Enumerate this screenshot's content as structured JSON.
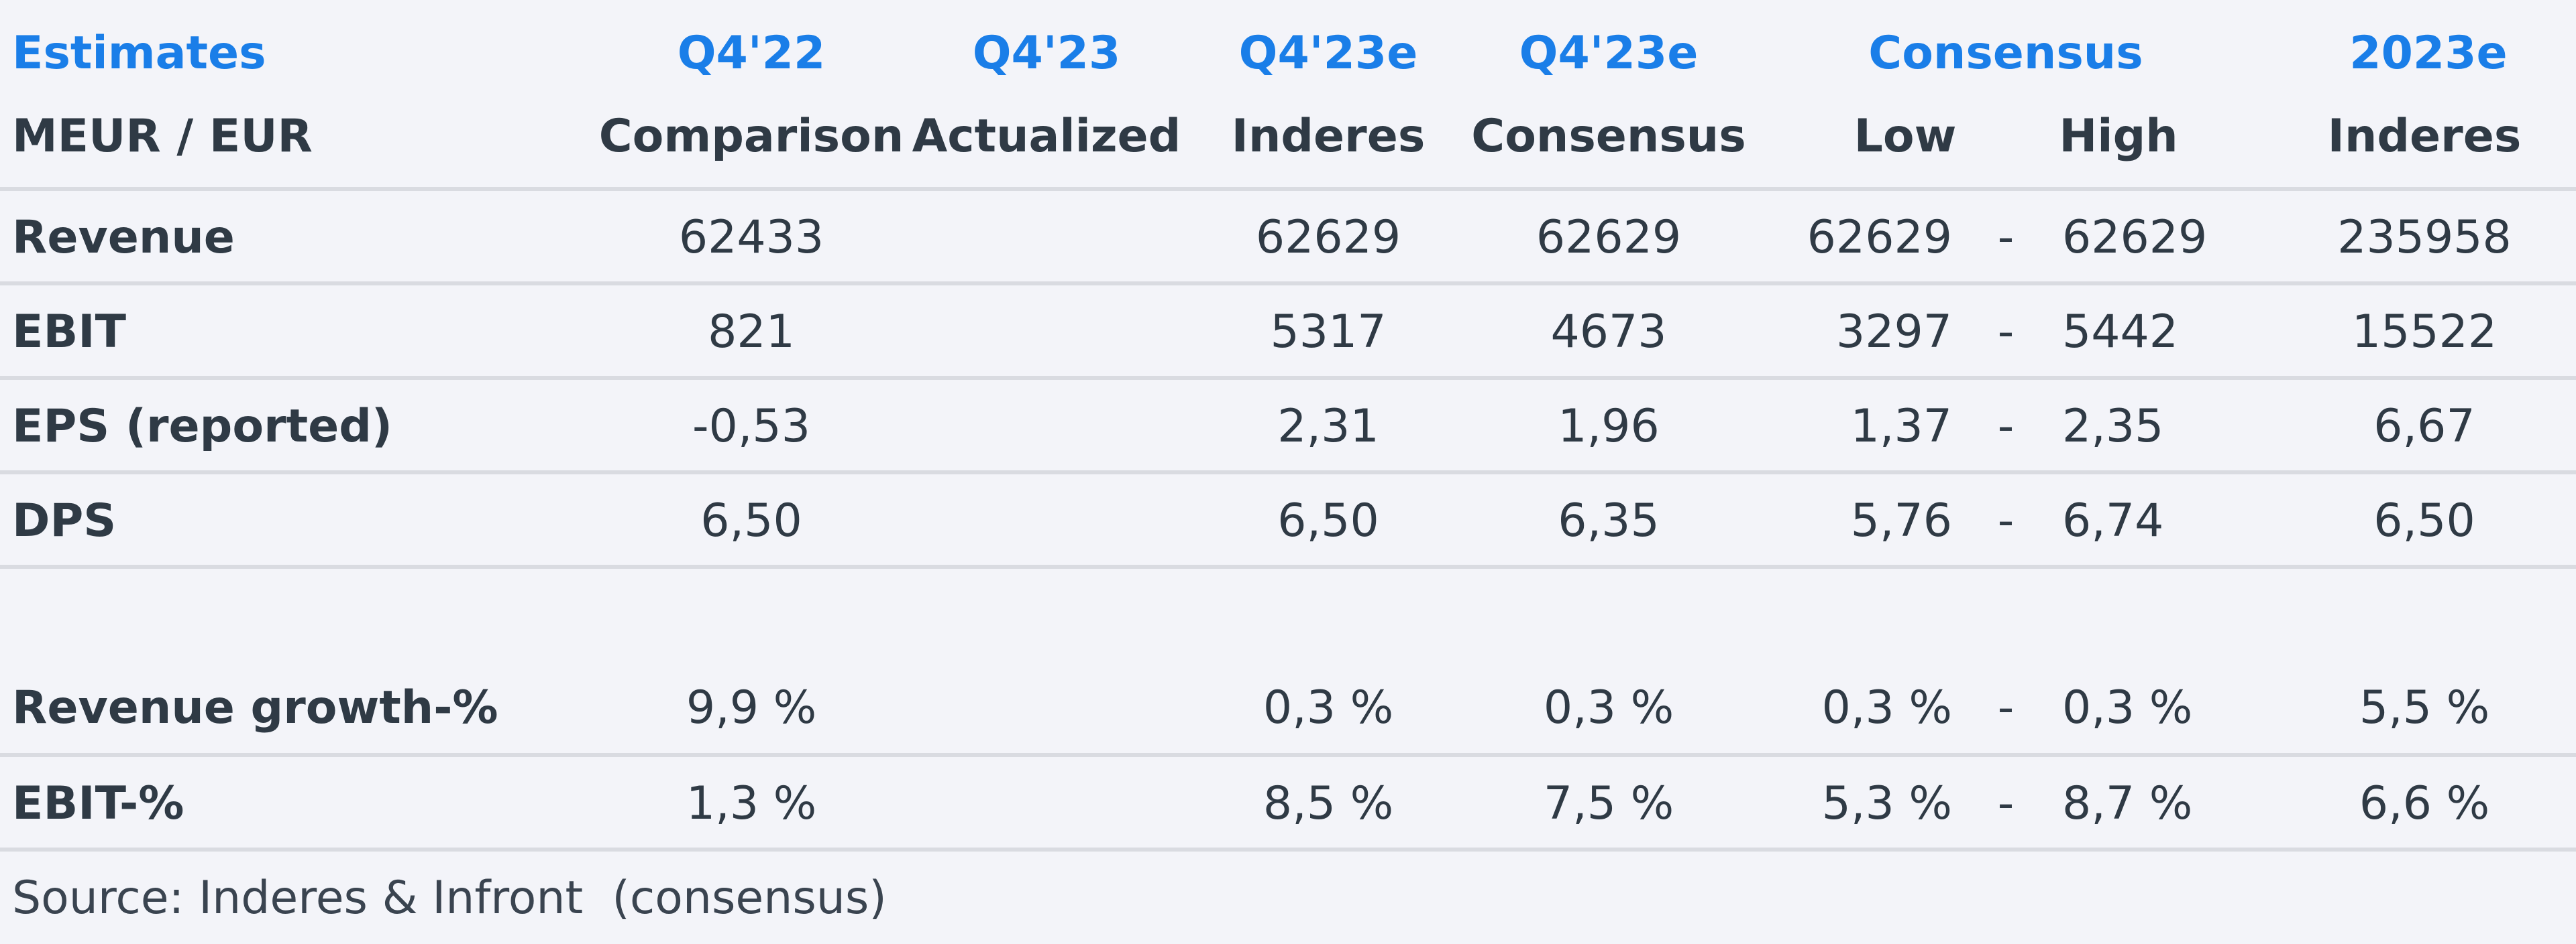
{
  "header": {
    "row1": {
      "label": "Estimates",
      "q4_22": "Q4'22",
      "q4_23": "Q4'23",
      "q4_23e_inderes": "Q4'23e",
      "q4_23e_consensus": "Q4'23e",
      "consensus": "Consensus",
      "y2023e": "2023e"
    },
    "row2": {
      "label": "MEUR / EUR",
      "q4_22": "Comparison",
      "q4_23": "Actualized",
      "q4_23e_inderes": "Inderes",
      "q4_23e_consensus": "Consensus",
      "low": "Low",
      "high": "High",
      "y2023e": "Inderes"
    }
  },
  "rows": [
    {
      "label": "Revenue",
      "q4_22": "62433",
      "q4_23": "",
      "inderes": "62629",
      "consensus": "62629",
      "low": "62629",
      "dash": "-",
      "high": "62629",
      "y2023e": "235958"
    },
    {
      "label": "EBIT",
      "q4_22": "821",
      "q4_23": "",
      "inderes": "5317",
      "consensus": "4673",
      "low": "3297",
      "dash": "-",
      "high": "5442",
      "y2023e": "15522"
    },
    {
      "label": "EPS (reported)",
      "q4_22": "-0,53",
      "q4_23": "",
      "inderes": "2,31",
      "consensus": "1,96",
      "low": "1,37",
      "dash": "-",
      "high": "2,35",
      "y2023e": "6,67"
    },
    {
      "label": "DPS",
      "q4_22": "6,50",
      "q4_23": "",
      "inderes": "6,50",
      "consensus": "6,35",
      "low": "5,76",
      "dash": "-",
      "high": "6,74",
      "y2023e": "6,50"
    },
    {
      "label": "Revenue growth-%",
      "q4_22": "9,9 %",
      "q4_23": "",
      "inderes": "0,3 %",
      "consensus": "0,3 %",
      "low": "0,3 %",
      "dash": "-",
      "high": "0,3 %",
      "y2023e": "5,5 %"
    },
    {
      "label": "EBIT-%",
      "q4_22": "1,3 %",
      "q4_23": "",
      "inderes": "8,5 %",
      "consensus": "7,5 %",
      "low": "5,3 %",
      "dash": "-",
      "high": "8,7 %",
      "y2023e": "6,6 %"
    }
  ],
  "footer": {
    "source": "Source: Inderes & Infront  (consensus)"
  },
  "colors": {
    "accent_blue": "#1a7ee8",
    "text_dark": "#2f3a45",
    "background": "#f3f4f9",
    "separator": "#d9dbe1"
  }
}
